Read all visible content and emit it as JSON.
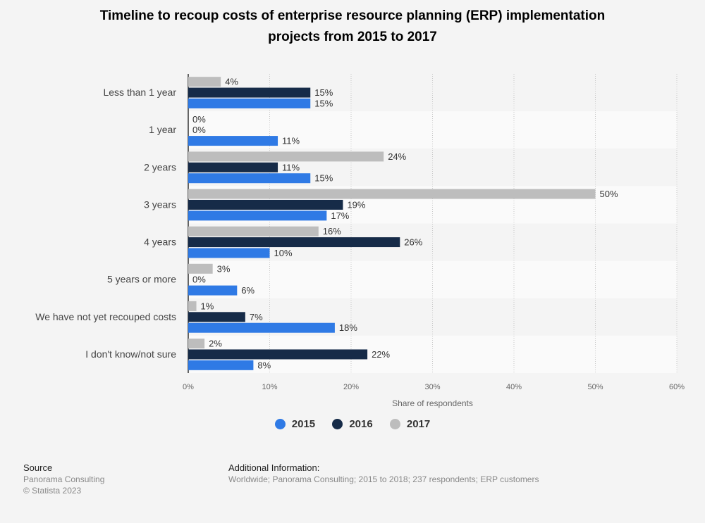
{
  "title_line1": "Timeline to recoup costs of enterprise resource planning (ERP) implementation",
  "title_line2": "projects from 2015 to 2017",
  "chart_data": {
    "type": "bar",
    "orientation": "horizontal",
    "categories": [
      "Less than 1 year",
      "1 year",
      "2 years",
      "3 years",
      "4 years",
      "5 years or more",
      "We have not yet recouped costs",
      "I don't know/not sure"
    ],
    "series": [
      {
        "name": "2015",
        "color": "#2f7ae5",
        "values": [
          15,
          11,
          15,
          17,
          10,
          6,
          18,
          8
        ]
      },
      {
        "name": "2016",
        "color": "#162b48",
        "values": [
          15,
          0,
          11,
          19,
          26,
          0,
          7,
          22
        ]
      },
      {
        "name": "2017",
        "color": "#bdbdbd",
        "values": [
          4,
          0,
          24,
          50,
          16,
          3,
          1,
          2
        ]
      }
    ],
    "xlabel": "Share of respondents",
    "xlim": [
      0,
      60
    ],
    "xticks": [
      "0%",
      "10%",
      "20%",
      "30%",
      "40%",
      "50%",
      "60%"
    ],
    "value_suffix": "%",
    "grid": true,
    "legend": "bottom"
  },
  "footer": {
    "source_head": "Source",
    "source_line1": "Panorama Consulting",
    "source_line2": "© Statista 2023",
    "info_head": "Additional Information:",
    "info_line": "Worldwide; Panorama Consulting; 2015 to 2018; 237 respondents; ERP customers"
  }
}
